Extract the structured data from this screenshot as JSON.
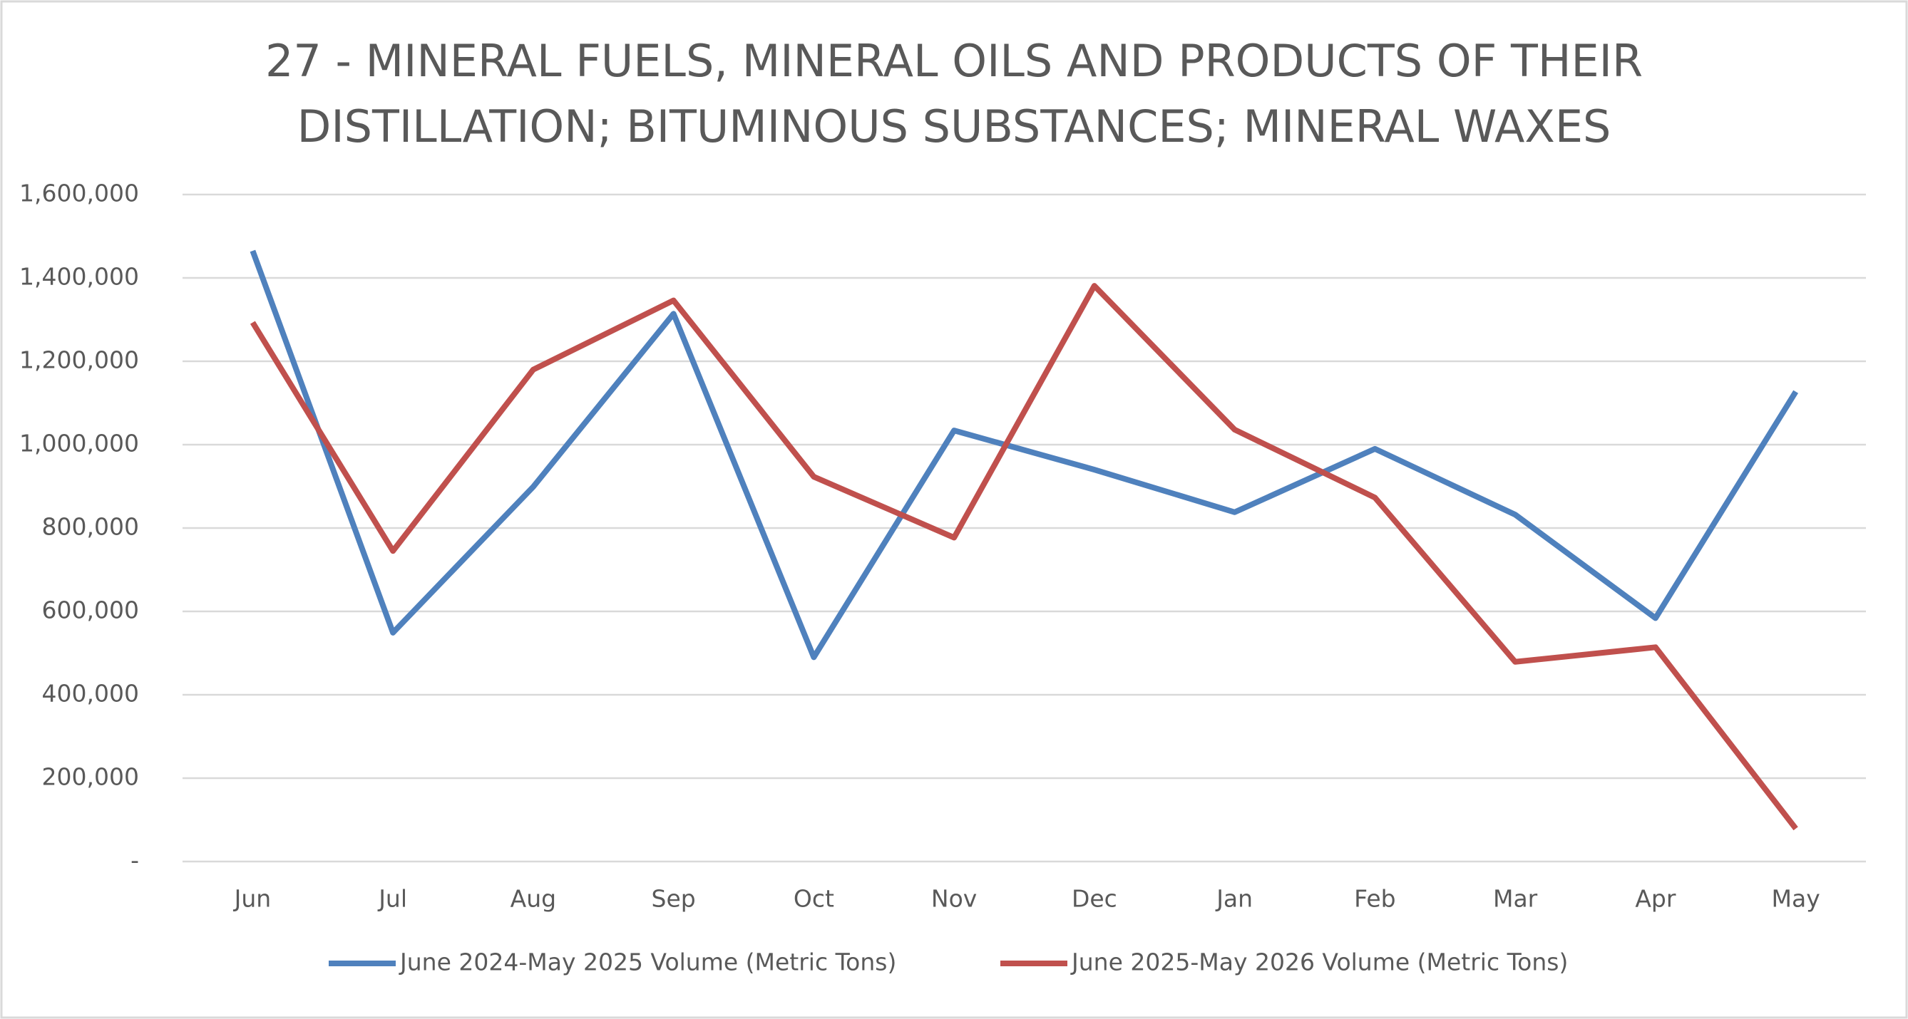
{
  "chart_data": {
    "type": "line",
    "title": "27 - MINERAL FUELS, MINERAL OILS AND PRODUCTS OF THEIR DISTILLATION; BITUMINOUS SUBSTANCES; MINERAL WAXES",
    "categories": [
      "Jun",
      "Jul",
      "Aug",
      "Sep",
      "Oct",
      "Nov",
      "Dec",
      "Jan",
      "Feb",
      "Mar",
      "Apr",
      "May"
    ],
    "series": [
      {
        "name": "June 2024-May 2025 Volume (Metric Tons)",
        "color": "#4f81bd",
        "values": [
          1465000,
          549000,
          899000,
          1314000,
          490000,
          1034000,
          940000,
          838000,
          990000,
          832000,
          584000,
          1127000
        ]
      },
      {
        "name": "June 2025-May 2026 Volume (Metric Tons)",
        "color": "#c0504d",
        "values": [
          1293000,
          745000,
          1180000,
          1346000,
          923000,
          777000,
          1381000,
          1036000,
          873000,
          479000,
          514000,
          79000
        ]
      }
    ],
    "ylim": [
      0,
      1600000
    ],
    "yticks": [
      {
        "value": 0,
        "label": "-"
      },
      {
        "value": 200000,
        "label": "200,000"
      },
      {
        "value": 400000,
        "label": "400,000"
      },
      {
        "value": 600000,
        "label": "600,000"
      },
      {
        "value": 800000,
        "label": "800,000"
      },
      {
        "value": 1000000,
        "label": "1,000,000"
      },
      {
        "value": 1200000,
        "label": "1,200,000"
      },
      {
        "value": 1400000,
        "label": "1,400,000"
      },
      {
        "value": 1600000,
        "label": "1,600,000"
      }
    ],
    "grid": true,
    "legend": "bottom"
  }
}
